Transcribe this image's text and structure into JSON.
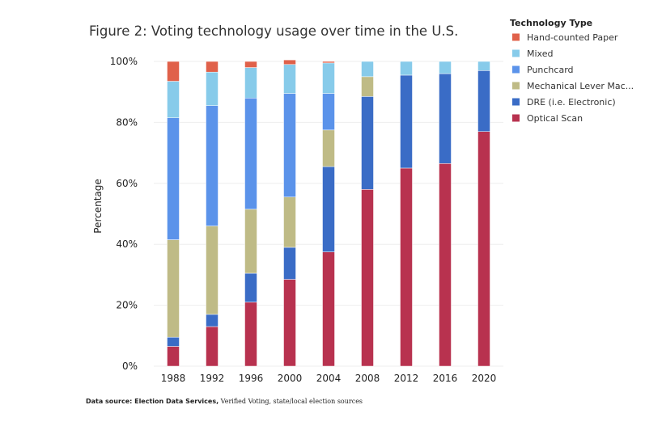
{
  "chart_data": {
    "type": "bar",
    "stacked": true,
    "title": "Figure 2: Voting technology usage over time in the U.S.",
    "xlabel": "",
    "ylabel": "Percentage",
    "ylim": [
      0,
      100
    ],
    "yticks": [
      "0%",
      "20%",
      "40%",
      "60%",
      "80%",
      "100%"
    ],
    "categories": [
      "1988",
      "1992",
      "1996",
      "2000",
      "2004",
      "2008",
      "2012",
      "2016",
      "2020"
    ],
    "legend_title": "Technology Type",
    "legend_position": "top-right",
    "series": [
      {
        "name": "Optical Scan",
        "color": "#b8324f",
        "values": [
          6.5,
          13,
          21,
          28.5,
          37.5,
          58,
          65,
          66.5,
          77
        ]
      },
      {
        "name": "DRE (i.e. Electronic)",
        "color": "#3a6cc6",
        "values": [
          3,
          4,
          9.5,
          10.5,
          28,
          30.5,
          30.5,
          29.5,
          20
        ]
      },
      {
        "name": "Mechanical Lever Mac...",
        "color": "#bfbb86",
        "values": [
          32,
          29,
          21,
          16.5,
          12,
          6.5,
          0,
          0,
          0
        ]
      },
      {
        "name": "Punchcard",
        "color": "#5b93ea",
        "values": [
          40,
          39.5,
          36.5,
          34,
          12,
          0,
          0,
          0,
          0
        ]
      },
      {
        "name": "Mixed",
        "color": "#87cbea",
        "values": [
          12,
          11,
          10,
          9.5,
          10,
          5,
          4.5,
          4,
          3
        ]
      },
      {
        "name": "Hand-counted Paper",
        "color": "#e0614a",
        "values": [
          6.5,
          3.5,
          2,
          1.5,
          0.5,
          0,
          0,
          0,
          0
        ]
      }
    ],
    "legend_order": [
      "Hand-counted Paper",
      "Mixed",
      "Punchcard",
      "Mechanical Lever Mac...",
      "DRE (i.e. Electronic)",
      "Optical Scan"
    ]
  },
  "source": {
    "label": "Data source: Election Data Services,",
    "rest": "Verified Voting, state/local election sources"
  }
}
